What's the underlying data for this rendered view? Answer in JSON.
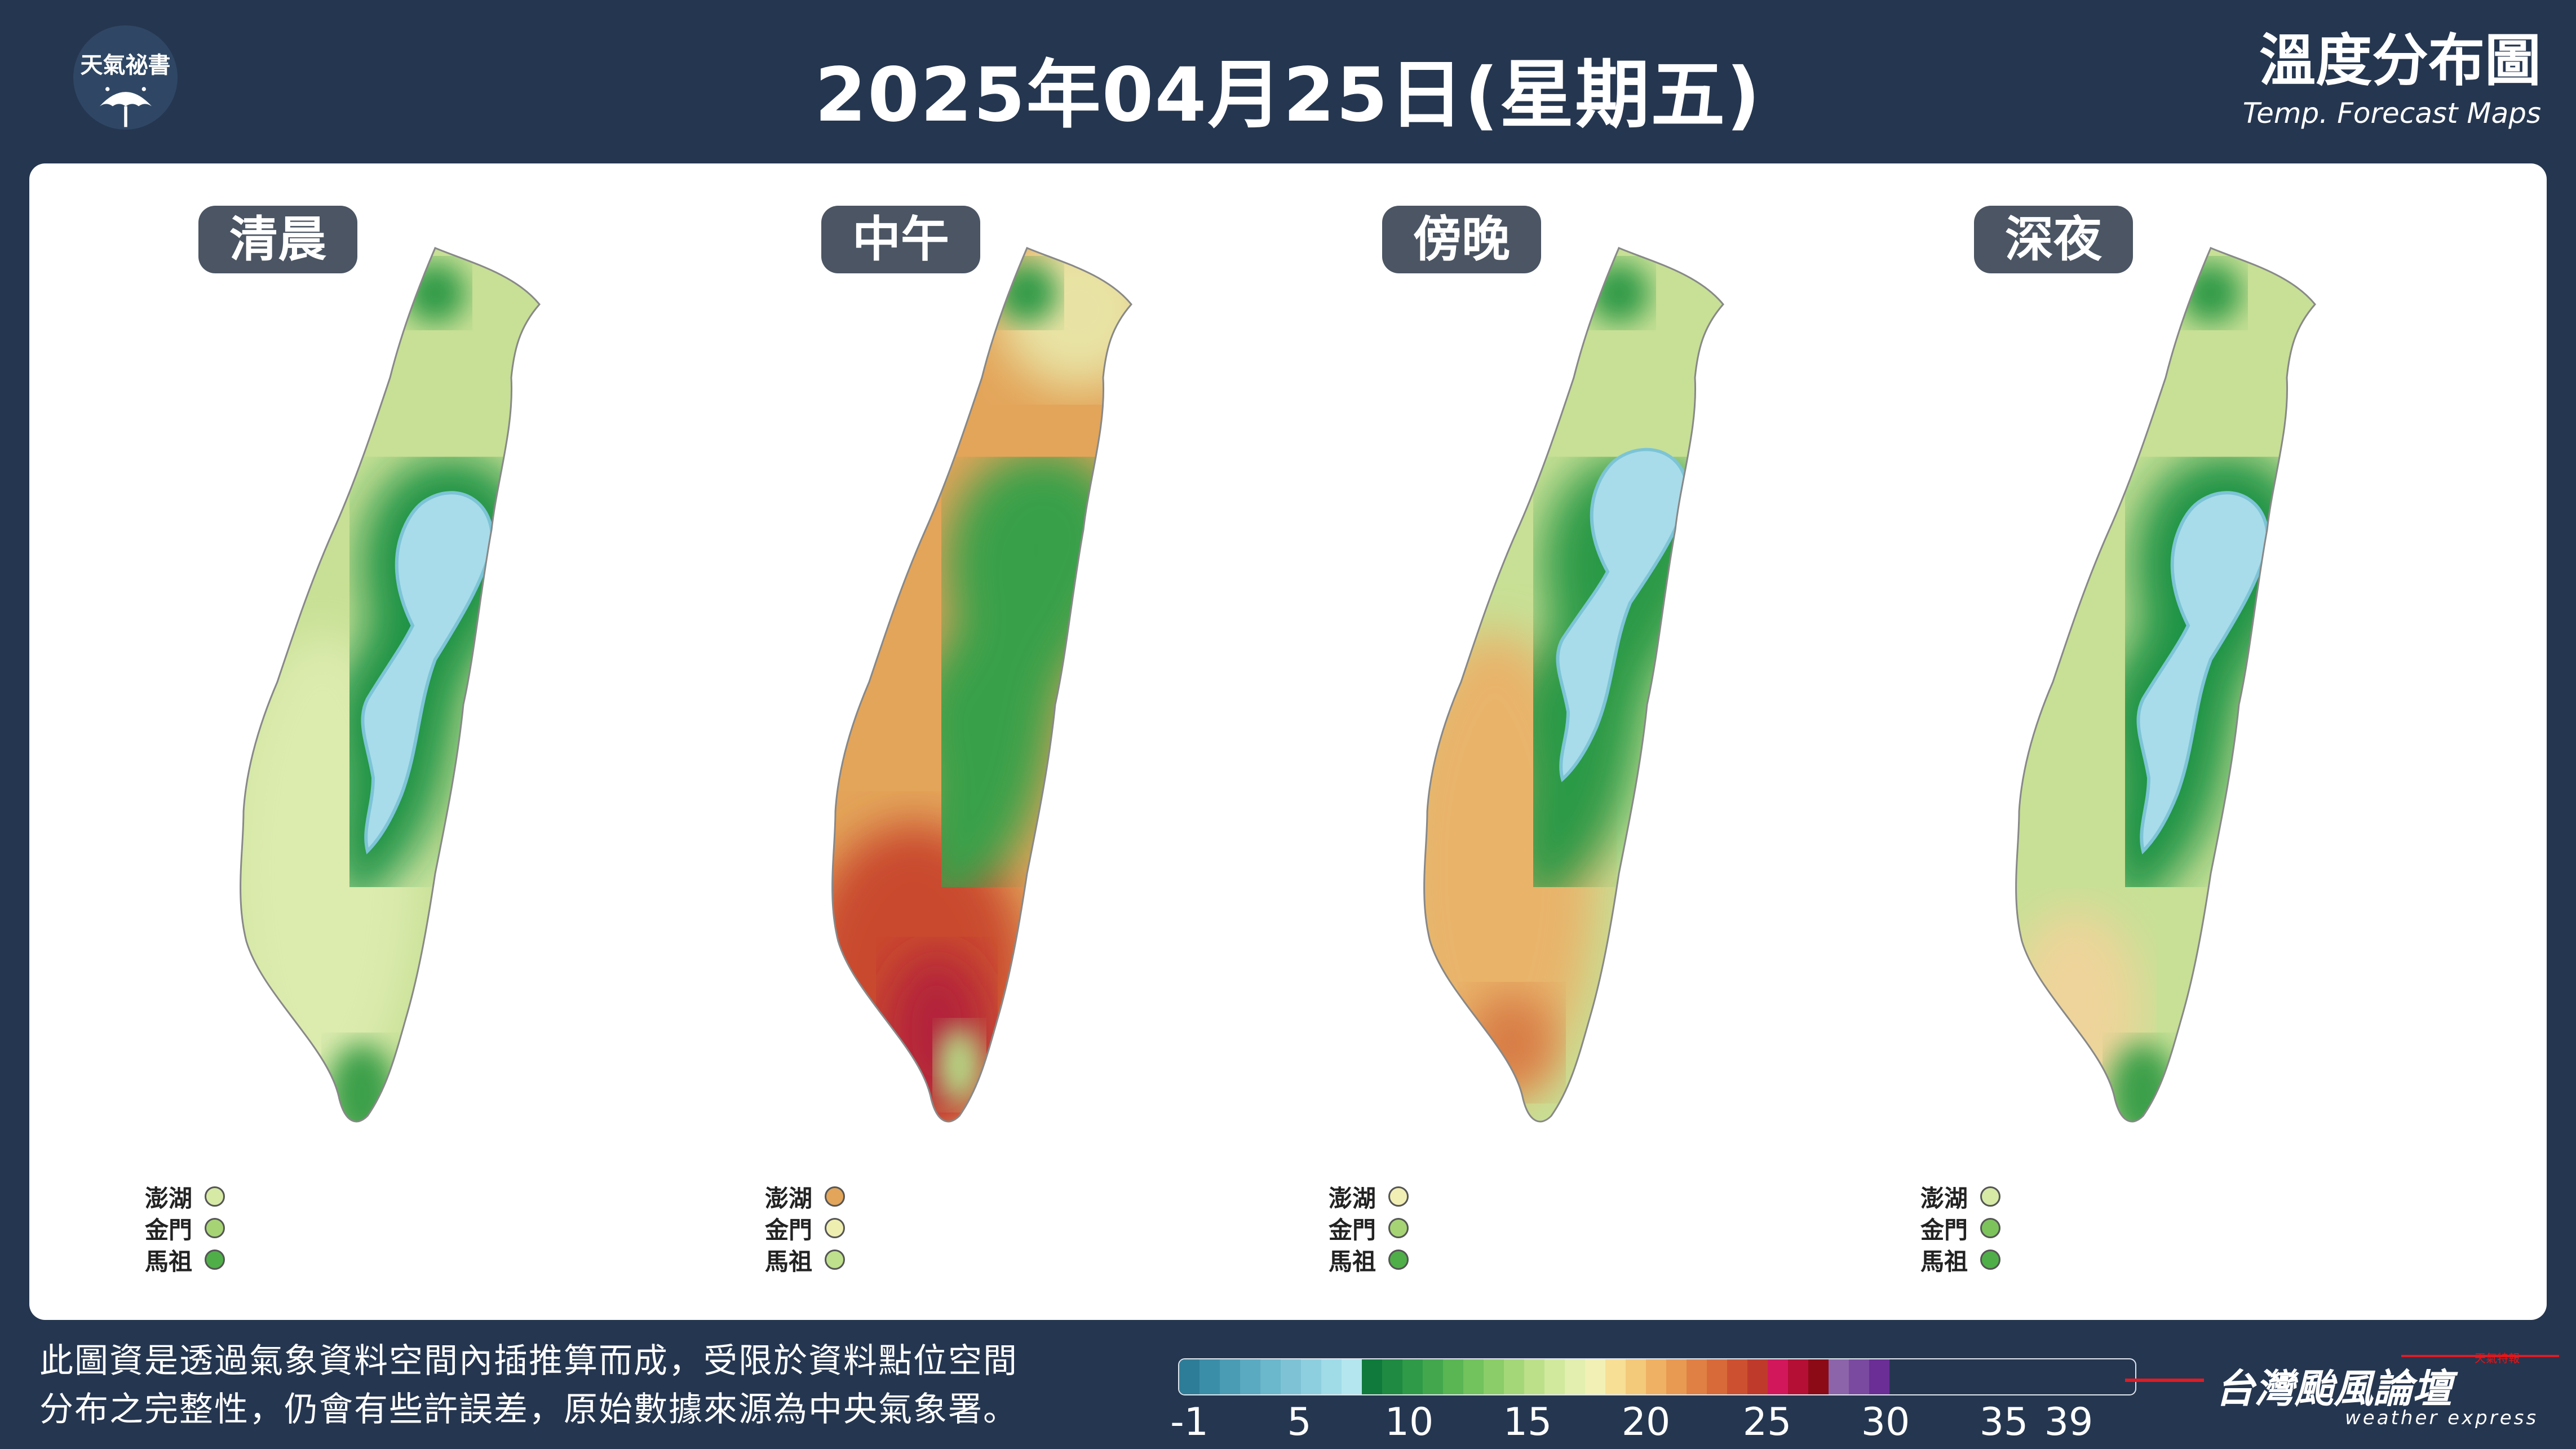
{
  "header": {
    "logo_text": "天氣祕書",
    "title": "2025年04月25日(星期五)",
    "brand_title": "溫度分布圖",
    "brand_subtitle": "Temp. Forecast Maps"
  },
  "panels": [
    {
      "label": "清晨",
      "islands": [
        {
          "name": "澎湖",
          "color": "#d6eaa6"
        },
        {
          "name": "金門",
          "color": "#a6d474"
        },
        {
          "name": "馬祖",
          "color": "#4fae48"
        }
      ]
    },
    {
      "label": "中午",
      "islands": [
        {
          "name": "澎湖",
          "color": "#e3a55a"
        },
        {
          "name": "金門",
          "color": "#eeeeb0"
        },
        {
          "name": "馬祖",
          "color": "#bfe08c"
        }
      ]
    },
    {
      "label": "傍晚",
      "islands": [
        {
          "name": "澎湖",
          "color": "#f2efb4"
        },
        {
          "name": "金門",
          "color": "#a6d474"
        },
        {
          "name": "馬祖",
          "color": "#4fae48"
        }
      ]
    },
    {
      "label": "深夜",
      "islands": [
        {
          "name": "澎湖",
          "color": "#d6eaa6"
        },
        {
          "name": "金門",
          "color": "#7cc35c"
        },
        {
          "name": "馬祖",
          "color": "#4fae48"
        }
      ]
    }
  ],
  "footnote": {
    "line1": "此圖資是透過氣象資料空間內插推算而成，受限於資料點位空間",
    "line2": "分布之完整性，仍會有些許誤差，原始數據來源為中央氣象署。"
  },
  "scale": {
    "ticks": [
      "-1",
      "5",
      "10",
      "15",
      "20",
      "25",
      "30",
      "35",
      "39"
    ],
    "colors": [
      "#2e7d98",
      "#3b8ea8",
      "#4a9cb5",
      "#5aaac1",
      "#6bb7cb",
      "#7dc3d5",
      "#8ecfdf",
      "#a0dbe8",
      "#b4e6ef",
      "#0f7a3c",
      "#1f8a42",
      "#2f9a47",
      "#43a84d",
      "#5ab653",
      "#72c25d",
      "#8bcd68",
      "#a4d778",
      "#bce08a",
      "#d1e99d",
      "#e2efaf",
      "#f2f0b5",
      "#f7df95",
      "#f3c97a",
      "#efb163",
      "#e89a52",
      "#e08044",
      "#d86a3a",
      "#cd5130",
      "#c03a2c",
      "#d2185a",
      "#b50f35",
      "#8b0a16",
      "#8c64aa",
      "#7a4aa0",
      "#6a2e96"
    ]
  },
  "footer_brand": {
    "name": "台灣颱風論壇",
    "sub": "weather express",
    "tag": "天氣特報"
  }
}
